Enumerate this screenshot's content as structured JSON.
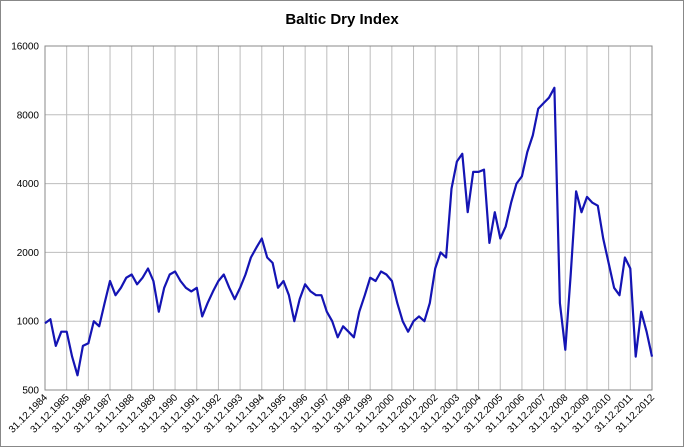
{
  "chart_data": {
    "type": "line",
    "title": "Baltic Dry Index",
    "categories": [
      "31.12.1984",
      null,
      null,
      null,
      "31.12.1985",
      null,
      null,
      null,
      "31.12.1986",
      null,
      null,
      null,
      "31.12.1987",
      null,
      null,
      null,
      "31.12.1988",
      null,
      null,
      null,
      "31.12.1989",
      null,
      null,
      null,
      "31.12.1990",
      null,
      null,
      null,
      "31.12.1991",
      null,
      null,
      null,
      "31.12.1992",
      null,
      null,
      null,
      "31.12.1993",
      null,
      null,
      null,
      "31.12.1994",
      null,
      null,
      null,
      "31.12.1995",
      null,
      null,
      null,
      "31.12.1996",
      null,
      null,
      null,
      "31.12.1997",
      null,
      null,
      null,
      "31.12.1998",
      null,
      null,
      null,
      "31.12.1999",
      null,
      null,
      null,
      "31.12.2000",
      null,
      null,
      null,
      "31.12.2001",
      null,
      null,
      null,
      "31.12.2002",
      null,
      null,
      null,
      "31.12.2003",
      null,
      null,
      null,
      "31.12.2004",
      null,
      null,
      null,
      "31.12.2005",
      null,
      null,
      null,
      "31.12.2006",
      null,
      null,
      null,
      "31.12.2007",
      null,
      null,
      null,
      "31.12.2008",
      null,
      null,
      null,
      "31.12.2009",
      null,
      null,
      null,
      "31.12.2010",
      null,
      null,
      null,
      "31.12.2011",
      null,
      null,
      null,
      "31.12.2012"
    ],
    "series": [
      {
        "name": "Baltic Dry Index",
        "color": "#1414b4",
        "values": [
          980,
          1020,
          780,
          900,
          900,
          700,
          580,
          780,
          800,
          1000,
          950,
          1200,
          1500,
          1300,
          1400,
          1550,
          1600,
          1450,
          1550,
          1700,
          1500,
          1100,
          1400,
          1600,
          1650,
          1500,
          1400,
          1350,
          1400,
          1050,
          1200,
          1350,
          1500,
          1600,
          1400,
          1250,
          1400,
          1600,
          1900,
          2100,
          2300,
          1900,
          1800,
          1400,
          1500,
          1300,
          1000,
          1250,
          1450,
          1350,
          1300,
          1300,
          1100,
          1000,
          850,
          950,
          900,
          850,
          1100,
          1300,
          1550,
          1500,
          1650,
          1600,
          1500,
          1200,
          1000,
          900,
          1000,
          1050,
          1000,
          1200,
          1700,
          2000,
          1900,
          3800,
          5000,
          5400,
          3000,
          4500,
          4500,
          4600,
          2200,
          3000,
          2300,
          2600,
          3300,
          4000,
          4300,
          5500,
          6500,
          8500,
          9000,
          9500,
          10500,
          1200,
          750,
          1600,
          3700,
          3000,
          3500,
          3300,
          3200,
          2300,
          1800,
          1400,
          1300,
          1900,
          1700,
          700,
          1100,
          900,
          700
        ]
      }
    ],
    "ylim": [
      500,
      16000
    ],
    "yticks": [
      500,
      1000,
      2000,
      4000,
      8000,
      16000
    ],
    "yscale": "log",
    "grid": true
  }
}
